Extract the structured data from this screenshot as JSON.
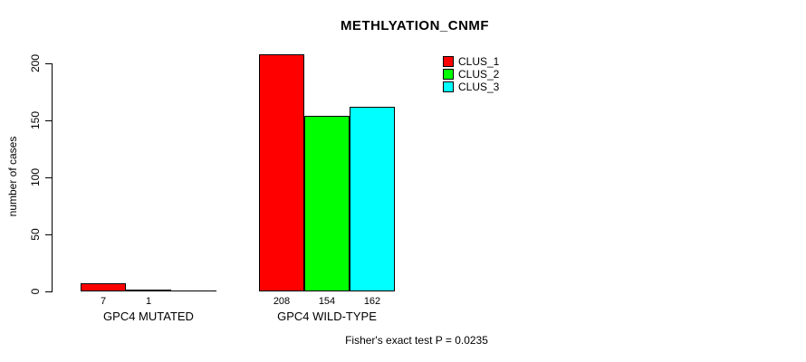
{
  "chart_data": {
    "type": "bar",
    "grouped": true,
    "title": "METHLYATION_CNMF",
    "xlabel": "",
    "ylabel": "number of cases",
    "categories": [
      "GPC4 MUTATED",
      "GPC4 WILD-TYPE"
    ],
    "series": [
      {
        "name": "CLUS_1",
        "color": "#ff0000",
        "values": [
          7,
          208
        ]
      },
      {
        "name": "CLUS_2",
        "color": "#00ff00",
        "values": [
          1,
          154
        ]
      },
      {
        "name": "CLUS_3",
        "color": "#00ffff",
        "values": [
          0,
          162
        ]
      }
    ],
    "bar_value_labels": [
      [
        "7",
        "1",
        ""
      ],
      [
        "208",
        "154",
        "162"
      ]
    ],
    "ylim": [
      0,
      200
    ],
    "yticks": [
      0,
      50,
      100,
      150,
      200
    ],
    "grid": false,
    "legend_position": "top-right",
    "annotation": "Fisher's exact test P = 0.0235",
    "colors": {
      "background": "#ffffff",
      "axis": "#000000",
      "bar_border": "#000000"
    }
  }
}
